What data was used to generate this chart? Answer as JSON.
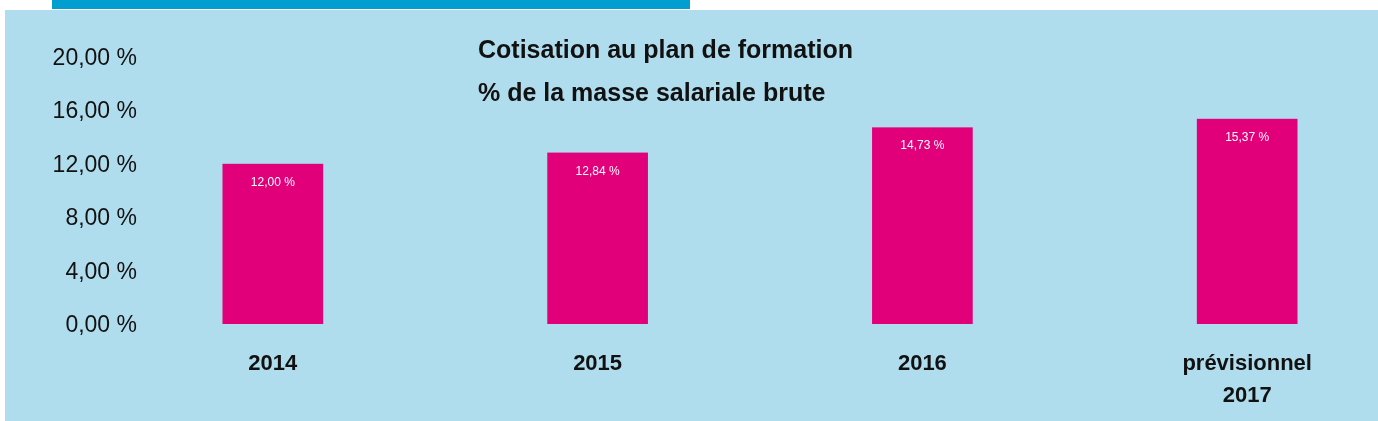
{
  "chart_data": {
    "type": "bar",
    "title": "Cotisation au plan de formation\n% de la masse salariale brute",
    "categories": [
      "2014",
      "2015",
      "2016",
      "prévisionnel\n2017"
    ],
    "values": [
      12.0,
      12.84,
      14.73,
      15.37
    ],
    "value_labels": [
      "12,00 %",
      "12,84 %",
      "14,73 %",
      "15,37 %"
    ],
    "color": "#e2007a",
    "ylim": [
      0,
      20
    ],
    "yticks": [
      {
        "value": 0,
        "label": "0,00 %"
      },
      {
        "value": 4,
        "label": "4,00 %"
      },
      {
        "value": 8,
        "label": "8,00 %"
      },
      {
        "value": 12,
        "label": "12,00 %"
      },
      {
        "value": 16,
        "label": "16,00 %"
      },
      {
        "value": 20,
        "label": "20,00 %"
      }
    ],
    "grid": false
  }
}
